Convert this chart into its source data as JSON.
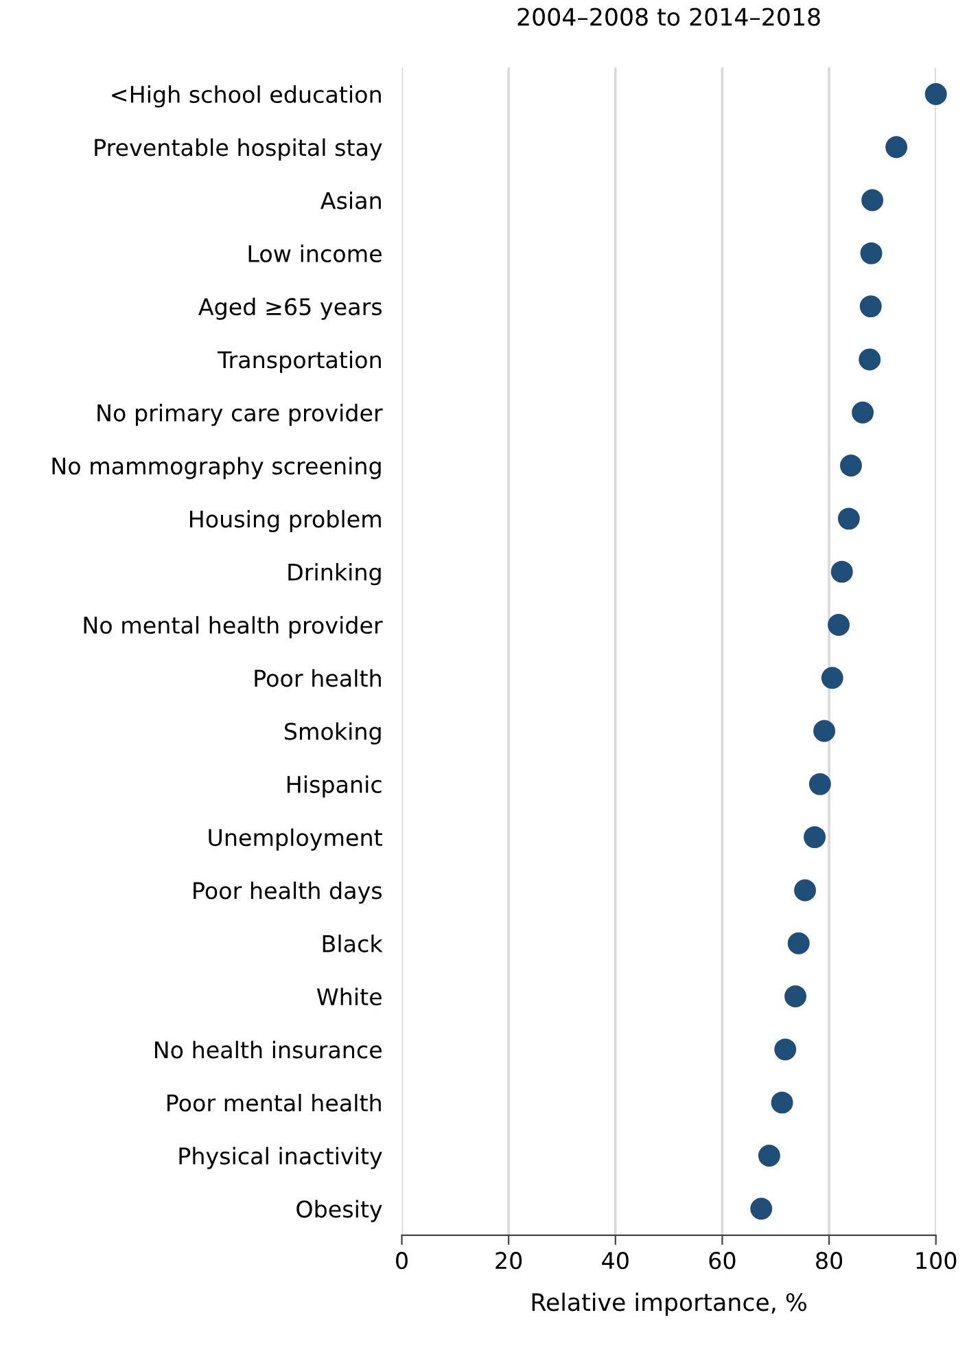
{
  "chart_data": {
    "type": "scatter",
    "orientation": "horizontal",
    "title": "2004–2008 to 2014–2018",
    "xlabel": "Relative importance, %",
    "categories": [
      "<High school education",
      "Preventable hospital stay",
      "Asian",
      "Low income",
      "Aged ≥65 years",
      "Transportation",
      "No primary care provider",
      "No mammography screening",
      "Housing problem",
      "Drinking",
      "No mental health provider",
      "Poor health",
      "Smoking",
      "Hispanic",
      "Unemployment",
      "Poor health days",
      "Black",
      "White",
      "No health insurance",
      "Poor mental health",
      "Physical inactivity",
      "Obesity"
    ],
    "series": [
      {
        "color": "#1f4e79",
        "values": [
          100,
          92.6,
          88.1,
          87.9,
          87.8,
          87.6,
          86.3,
          84.1,
          83.7,
          82.4,
          81.8,
          80.6,
          79.1,
          78.3,
          77.3,
          75.5,
          74.3,
          73.7,
          71.8,
          71.2,
          68.8,
          67.3
        ]
      }
    ],
    "xlim": [
      0,
      100
    ],
    "xticks": [
      0,
      20,
      40,
      60,
      80,
      100
    ],
    "grid": "x",
    "marker": "circle",
    "legend": false
  }
}
